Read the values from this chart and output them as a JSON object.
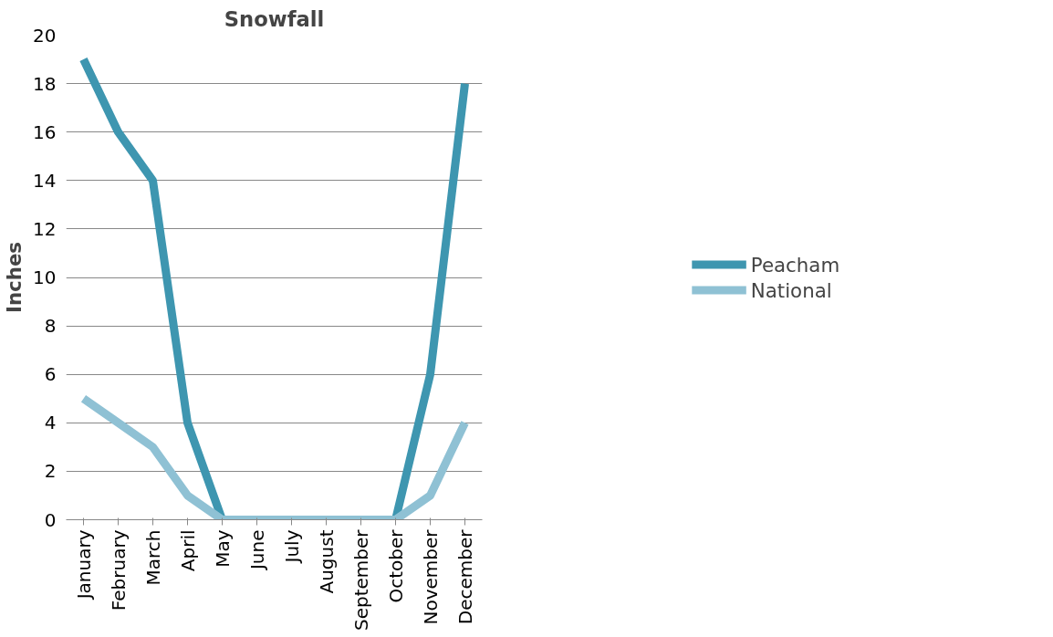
{
  "chart_data": {
    "type": "line",
    "title": "Snowfall",
    "ylabel": "Inches",
    "categories": [
      "January",
      "February",
      "March",
      "April",
      "May",
      "June",
      "July",
      "August",
      "September",
      "October",
      "November",
      "December"
    ],
    "series": [
      {
        "name": "Peacham",
        "color": "#3e96b0",
        "values": [
          19,
          16,
          14,
          4,
          0,
          0,
          0,
          0,
          0,
          0,
          6,
          18
        ]
      },
      {
        "name": "National",
        "color": "#8fc1d4",
        "values": [
          5,
          4,
          3,
          1,
          0,
          0,
          0,
          0,
          0,
          0,
          1,
          4
        ]
      }
    ],
    "ylim": [
      0,
      20
    ],
    "yticks": [
      0,
      2,
      4,
      6,
      8,
      10,
      12,
      14,
      16,
      18,
      20
    ],
    "grid": "y",
    "legend": "right",
    "marker": "none",
    "line_style": "solid"
  }
}
